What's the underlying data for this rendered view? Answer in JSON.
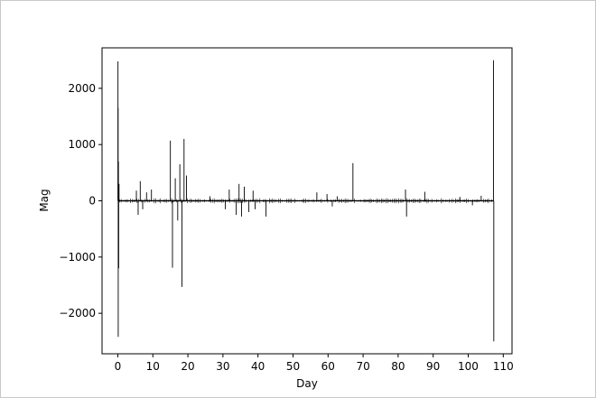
{
  "chart_data": {
    "type": "line",
    "title": "",
    "xlabel": "Day",
    "ylabel": "Mag",
    "xlim": [
      -4.5,
      112.5
    ],
    "ylim": [
      -2720,
      2720
    ],
    "x_ticks": [
      0,
      10,
      20,
      30,
      40,
      50,
      60,
      70,
      80,
      90,
      100,
      110
    ],
    "y_ticks": [
      2000,
      1000,
      0,
      -1000,
      -2000
    ],
    "x_tick_labels": [
      "0",
      "10",
      "20",
      "30",
      "40",
      "50",
      "60",
      "70",
      "80",
      "90",
      "100",
      "110"
    ],
    "y_tick_labels": [
      "2000",
      "1000",
      "0",
      "−1000",
      "−2000"
    ],
    "grid": false,
    "line_color": "#000000",
    "series": [
      {
        "name": "",
        "x": [
          0,
          0.05,
          0.08,
          0.12,
          0.18,
          0.25,
          0.35,
          5.3,
          5.8,
          6.4,
          7.1,
          8.2,
          9.6,
          15.0,
          15.6,
          16.4,
          17.1,
          17.7,
          18.3,
          18.9,
          19.6,
          26.3,
          30.7,
          31.8,
          33.8,
          34.6,
          35.3,
          36.1,
          37.4,
          38.6,
          39.2,
          42.3,
          56.8,
          59.7,
          61.2,
          62.6,
          67.1,
          82.1,
          82.4,
          87.6,
          97.6,
          101.2,
          103.7,
          107.2,
          107.3
        ],
        "y": [
          0,
          2480,
          1650,
          -2420,
          700,
          -1200,
          300,
          180,
          -250,
          350,
          -150,
          150,
          200,
          1070,
          -1190,
          400,
          -350,
          650,
          -1530,
          1100,
          450,
          80,
          -150,
          200,
          -250,
          300,
          -280,
          250,
          -200,
          180,
          -150,
          -280,
          150,
          120,
          -100,
          80,
          670,
          200,
          -280,
          160,
          70,
          -80,
          90,
          2500,
          -2500
        ]
      }
    ]
  }
}
